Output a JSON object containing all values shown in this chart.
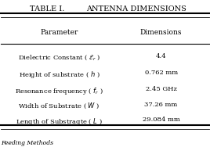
{
  "title": "TABLE I.",
  "subtitle": "ANTENNA DIMENSIONS",
  "col_headers": [
    "Parameter",
    "Dimensions"
  ],
  "rows": [
    [
      "Dielectric Constant ( $\\mathcal{E}_r$ )",
      "4.4"
    ],
    [
      "Height of substrate ( $h$ )",
      "0.762 mm"
    ],
    [
      "Resonance frequency ( $f_r$ )",
      "2.45 GHz"
    ],
    [
      "Width of Substrate ( $W$ )",
      "37.26 mm"
    ],
    [
      "Length of Substraqte ( $L$ )",
      "29.084 mm"
    ]
  ],
  "bg_color": "#ffffff",
  "text_color": "#000000",
  "header_color": "#000000",
  "line_color": "#000000",
  "title_fontsize": 7,
  "header_fontsize": 6.5,
  "cell_fontsize": 6.0
}
